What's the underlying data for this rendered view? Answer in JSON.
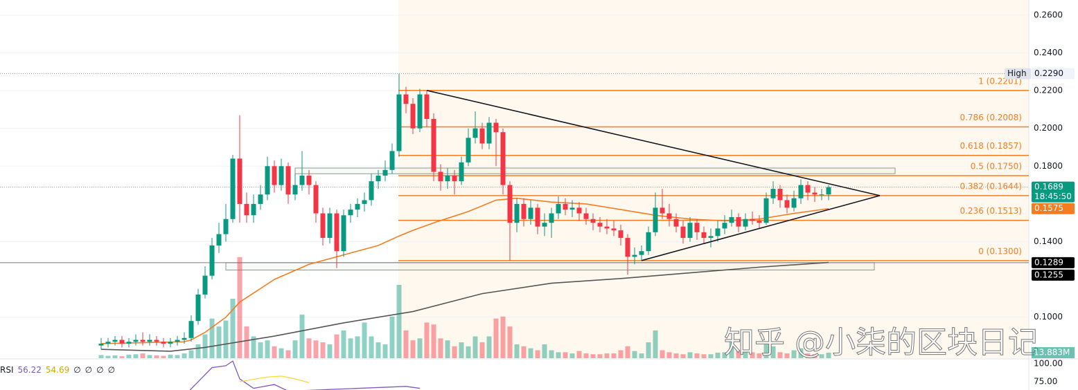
{
  "chart_data": {
    "type": "candlestick",
    "up_color": "#089981",
    "down_color": "#f23645",
    "open": [
      0.085,
      0.086,
      0.087,
      0.088,
      0.086,
      0.087,
      0.088,
      0.087,
      0.088,
      0.087,
      0.086,
      0.087,
      0.088,
      0.089,
      0.098,
      0.112,
      0.122,
      0.138,
      0.144,
      0.152,
      0.184,
      0.16,
      0.154,
      0.16,
      0.165,
      0.18,
      0.17,
      0.18,
      0.165,
      0.17,
      0.175,
      0.17,
      0.155,
      0.142,
      0.155,
      0.135,
      0.154,
      0.157,
      0.16,
      0.162,
      0.172,
      0.175,
      0.178,
      0.188,
      0.218,
      0.213,
      0.2,
      0.218,
      0.205,
      0.177,
      0.172,
      0.175,
      0.172,
      0.182,
      0.195,
      0.2,
      0.192,
      0.203,
      0.198,
      0.17,
      0.15,
      0.16,
      0.152,
      0.158,
      0.148,
      0.15,
      0.155,
      0.16,
      0.157,
      0.158,
      0.155,
      0.152,
      0.15,
      0.148,
      0.147,
      0.146,
      0.142,
      0.132,
      0.133,
      0.135,
      0.145,
      0.158,
      0.155,
      0.152,
      0.148,
      0.142,
      0.15,
      0.145,
      0.142,
      0.143,
      0.147,
      0.15,
      0.153,
      0.148,
      0.152,
      0.151,
      0.15,
      0.163,
      0.168,
      0.162,
      0.158,
      0.163,
      0.17,
      0.166,
      0.165,
      0.165
    ],
    "high": [
      0.089,
      0.089,
      0.09,
      0.09,
      0.089,
      0.091,
      0.092,
      0.091,
      0.09,
      0.089,
      0.089,
      0.09,
      0.092,
      0.101,
      0.115,
      0.127,
      0.142,
      0.15,
      0.16,
      0.186,
      0.207,
      0.166,
      0.165,
      0.17,
      0.185,
      0.183,
      0.184,
      0.182,
      0.176,
      0.188,
      0.178,
      0.172,
      0.158,
      0.158,
      0.157,
      0.157,
      0.16,
      0.163,
      0.166,
      0.176,
      0.178,
      0.183,
      0.192,
      0.229,
      0.222,
      0.216,
      0.221,
      0.22,
      0.208,
      0.181,
      0.179,
      0.178,
      0.185,
      0.2,
      0.209,
      0.203,
      0.206,
      0.205,
      0.2,
      0.172,
      0.163,
      0.163,
      0.162,
      0.16,
      0.155,
      0.158,
      0.164,
      0.163,
      0.162,
      0.161,
      0.158,
      0.155,
      0.153,
      0.152,
      0.151,
      0.149,
      0.144,
      0.137,
      0.138,
      0.148,
      0.166,
      0.168,
      0.16,
      0.155,
      0.151,
      0.153,
      0.152,
      0.148,
      0.147,
      0.151,
      0.154,
      0.157,
      0.155,
      0.155,
      0.156,
      0.154,
      0.166,
      0.172,
      0.17,
      0.165,
      0.167,
      0.173,
      0.172,
      0.169,
      0.168,
      0.17
    ],
    "low": [
      0.083,
      0.084,
      0.085,
      0.084,
      0.084,
      0.085,
      0.085,
      0.085,
      0.085,
      0.084,
      0.084,
      0.085,
      0.086,
      0.087,
      0.096,
      0.11,
      0.12,
      0.134,
      0.14,
      0.15,
      0.15,
      0.15,
      0.15,
      0.157,
      0.162,
      0.166,
      0.167,
      0.16,
      0.162,
      0.167,
      0.165,
      0.15,
      0.138,
      0.139,
      0.126,
      0.132,
      0.15,
      0.153,
      0.156,
      0.159,
      0.168,
      0.172,
      0.176,
      0.185,
      0.208,
      0.197,
      0.198,
      0.201,
      0.172,
      0.167,
      0.168,
      0.165,
      0.17,
      0.18,
      0.192,
      0.189,
      0.189,
      0.18,
      0.165,
      0.13,
      0.145,
      0.148,
      0.149,
      0.144,
      0.143,
      0.142,
      0.152,
      0.154,
      0.153,
      0.151,
      0.149,
      0.146,
      0.145,
      0.144,
      0.143,
      0.138,
      0.1225,
      0.128,
      0.13,
      0.133,
      0.143,
      0.152,
      0.148,
      0.145,
      0.139,
      0.14,
      0.141,
      0.139,
      0.137,
      0.14,
      0.144,
      0.148,
      0.145,
      0.146,
      0.149,
      0.147,
      0.149,
      0.16,
      0.158,
      0.155,
      0.156,
      0.16,
      0.162,
      0.161,
      0.162,
      0.162
    ],
    "close": [
      0.086,
      0.087,
      0.088,
      0.086,
      0.087,
      0.088,
      0.087,
      0.088,
      0.087,
      0.086,
      0.087,
      0.088,
      0.089,
      0.098,
      0.112,
      0.122,
      0.138,
      0.144,
      0.152,
      0.184,
      0.16,
      0.154,
      0.16,
      0.165,
      0.18,
      0.17,
      0.18,
      0.165,
      0.17,
      0.175,
      0.17,
      0.155,
      0.142,
      0.155,
      0.135,
      0.154,
      0.157,
      0.16,
      0.162,
      0.172,
      0.175,
      0.178,
      0.188,
      0.218,
      0.213,
      0.2,
      0.218,
      0.205,
      0.177,
      0.172,
      0.175,
      0.172,
      0.182,
      0.195,
      0.2,
      0.192,
      0.203,
      0.198,
      0.17,
      0.15,
      0.16,
      0.152,
      0.158,
      0.148,
      0.15,
      0.155,
      0.16,
      0.157,
      0.158,
      0.155,
      0.152,
      0.15,
      0.148,
      0.147,
      0.146,
      0.142,
      0.132,
      0.133,
      0.135,
      0.145,
      0.158,
      0.155,
      0.152,
      0.148,
      0.142,
      0.15,
      0.145,
      0.142,
      0.143,
      0.147,
      0.15,
      0.153,
      0.148,
      0.152,
      0.151,
      0.15,
      0.163,
      0.168,
      0.162,
      0.158,
      0.163,
      0.17,
      0.166,
      0.165,
      0.165,
      0.1689
    ],
    "volume": {
      "values": [
        8,
        6,
        7,
        5,
        9,
        10,
        12,
        8,
        7,
        6,
        9,
        8,
        12,
        20,
        35,
        60,
        100,
        80,
        95,
        150,
        255,
        80,
        55,
        40,
        45,
        30,
        25,
        20,
        45,
        110,
        50,
        45,
        40,
        35,
        60,
        70,
        50,
        55,
        90,
        55,
        40,
        35,
        105,
        185,
        70,
        45,
        50,
        90,
        85,
        50,
        45,
        30,
        40,
        30,
        55,
        40,
        55,
        100,
        105,
        80,
        35,
        30,
        25,
        20,
        35,
        20,
        15,
        15,
        12,
        18,
        12,
        10,
        10,
        12,
        12,
        20,
        30,
        18,
        12,
        40,
        70,
        20,
        15,
        12,
        10,
        15,
        12,
        10,
        10,
        14,
        15,
        45,
        20,
        18,
        15,
        12,
        35,
        30,
        15,
        12,
        20,
        25,
        12,
        10,
        10,
        13.883
      ],
      "last_label": "13.883M"
    },
    "vlim": [
      0,
      300
    ],
    "ylim": [
      0.0783,
      0.268
    ],
    "yticks": [
      {
        "value": 0.26,
        "label": "0.2600"
      },
      {
        "value": 0.24,
        "label": "0.2400"
      },
      {
        "value": 0.22,
        "label": "0.2200"
      },
      {
        "value": 0.2,
        "label": "0.2000"
      },
      {
        "value": 0.18,
        "label": "0.1800"
      },
      {
        "value": 0.14,
        "label": "0.1400"
      },
      {
        "value": 0.1,
        "label": "0.1000"
      }
    ],
    "moving_averages": [
      {
        "color": "#f57c1f",
        "x": [
          0,
          12,
          13,
          15,
          18,
          20,
          25,
          30,
          35,
          40,
          43,
          45,
          48,
          53,
          57,
          60,
          65,
          70,
          75,
          80,
          85,
          90,
          95,
          100,
          105
        ],
        "values": [
          0.086,
          0.087,
          0.088,
          0.092,
          0.1,
          0.108,
          0.12,
          0.128,
          0.133,
          0.138,
          0.143,
          0.146,
          0.15,
          0.156,
          0.162,
          0.163,
          0.161,
          0.16,
          0.157,
          0.154,
          0.152,
          0.151,
          0.152,
          0.155,
          0.1575
        ]
      },
      {
        "color": "#555555",
        "x": [
          0,
          10,
          15,
          25,
          35,
          45,
          55,
          65,
          75,
          85,
          95,
          105
        ],
        "values": [
          0.083,
          0.082,
          0.084,
          0.09,
          0.097,
          0.103,
          0.1125,
          0.118,
          0.1205,
          0.1235,
          0.1265,
          0.129
        ]
      }
    ],
    "fib_color": "#f57c1f",
    "fib_levels": [
      {
        "value": 0.2201,
        "label": "1 (0.2201)"
      },
      {
        "value": 0.2008,
        "label": "0.786 (0.2008)"
      },
      {
        "value": 0.1857,
        "label": "0.618 (0.1857)"
      },
      {
        "value": 0.175,
        "label": "0.5 (0.1750)"
      },
      {
        "value": 0.1644,
        "label": "0.382 (0.1644)"
      },
      {
        "value": 0.1513,
        "label": "0.236 (0.1513)"
      },
      {
        "value": 0.13,
        "label": "0 (0.1300)"
      }
    ],
    "trendlines": [
      {
        "x": [
          47,
          112.4
        ],
        "y": [
          0.2201,
          0.1644
        ]
      },
      {
        "x": [
          78,
          112.4
        ],
        "y": [
          0.13,
          0.1644
        ]
      }
    ],
    "zones": [
      {
        "x": [
          28,
          114.6
        ],
        "y": [
          0.176,
          0.179
        ]
      },
      {
        "x": [
          18,
          111.6
        ],
        "y": [
          0.125,
          0.1289
        ]
      }
    ],
    "price_labels": [
      {
        "value": 0.229,
        "label": "0.2290",
        "tag": "High",
        "color": "#f0f3fa",
        "line": "dotted"
      },
      {
        "value": 0.1689,
        "label": "0.1689",
        "color": "#089981",
        "countdown": "18:45:50",
        "line": "dotted"
      },
      {
        "value": 0.1575,
        "label": "0.1575",
        "color": "#f57c1f"
      },
      {
        "value": 0.1289,
        "label": "0.1289",
        "color": "#000000",
        "line": "solid"
      },
      {
        "value": 0.1255,
        "label": "0.1255",
        "color": "#000000"
      }
    ],
    "rsi": {
      "label": "RSI",
      "value": 56.22,
      "ma_value": 54.69,
      "extras": [
        "∅",
        "∅",
        "∅",
        "∅"
      ],
      "ylim": [
        66.2,
        100
      ],
      "yticks": [
        {
          "value": 100,
          "label": "100.00"
        },
        {
          "value": 75,
          "label": "75.00"
        }
      ],
      "line": {
        "color": "#7e57c2",
        "x": [
          12,
          14,
          16,
          18,
          19,
          20,
          22,
          25,
          27,
          44,
          46
        ],
        "values": [
          60,
          75,
          90,
          92,
          97,
          78,
          68,
          72,
          65,
          70,
          68
        ]
      },
      "ma": {
        "color": "#fdd835",
        "x": [
          20,
          24,
          26,
          28,
          30
        ],
        "values": [
          75,
          80,
          81,
          78,
          74
        ]
      }
    },
    "watermark": "知乎 @小柒的区块日记"
  }
}
